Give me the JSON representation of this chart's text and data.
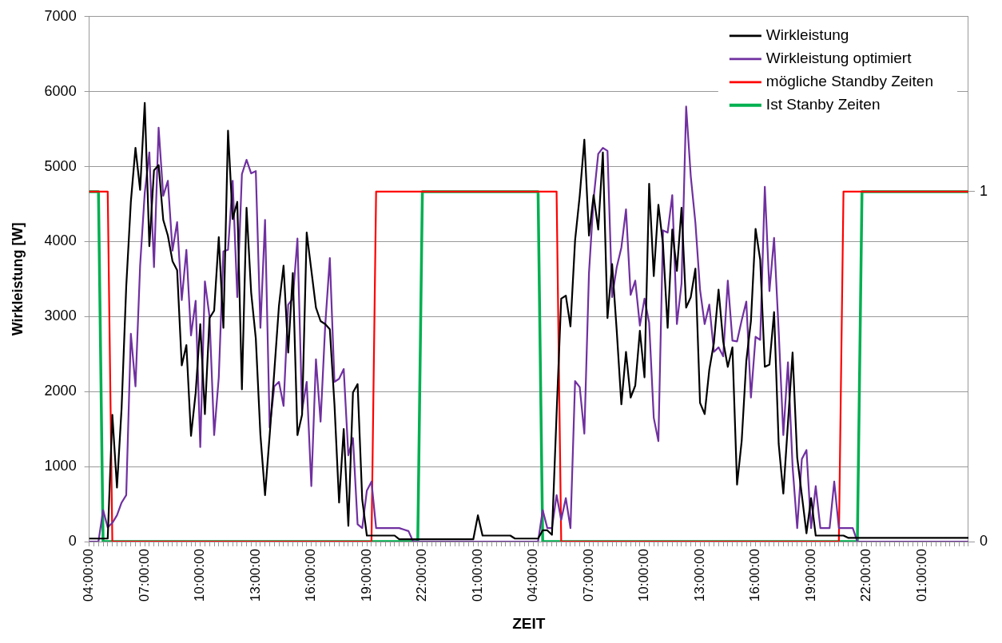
{
  "chart_data": {
    "type": "line",
    "xlabel": "ZEIT",
    "ylabel": "Wirkleistung [W]",
    "categories": [
      "04:00:00",
      null,
      null,
      null,
      null,
      null,
      null,
      null,
      null,
      null,
      null,
      null,
      "07:00:00",
      null,
      null,
      null,
      null,
      null,
      null,
      null,
      null,
      null,
      null,
      null,
      "10:00:00",
      null,
      null,
      null,
      null,
      null,
      null,
      null,
      null,
      null,
      null,
      null,
      "13:00:00",
      null,
      null,
      null,
      null,
      null,
      null,
      null,
      null,
      null,
      null,
      null,
      "16:00:00",
      null,
      null,
      null,
      null,
      null,
      null,
      null,
      null,
      null,
      null,
      null,
      "19:00:00",
      null,
      null,
      null,
      null,
      null,
      null,
      null,
      null,
      null,
      null,
      null,
      "22:00:00",
      null,
      null,
      null,
      null,
      null,
      null,
      null,
      null,
      null,
      null,
      null,
      "01:00:00",
      null,
      null,
      null,
      null,
      null,
      null,
      null,
      null,
      null,
      null,
      null,
      "04:00:00",
      null,
      null,
      null,
      null,
      null,
      null,
      null,
      null,
      null,
      null,
      null,
      "07:00:00",
      null,
      null,
      null,
      null,
      null,
      null,
      null,
      null,
      null,
      null,
      null,
      "10:00:00",
      null,
      null,
      null,
      null,
      null,
      null,
      null,
      null,
      null,
      null,
      null,
      "13:00:00",
      null,
      null,
      null,
      null,
      null,
      null,
      null,
      null,
      null,
      null,
      null,
      "16:00:00",
      null,
      null,
      null,
      null,
      null,
      null,
      null,
      null,
      null,
      null,
      null,
      "19:00:00",
      null,
      null,
      null,
      null,
      null,
      null,
      null,
      null,
      null,
      null,
      null,
      "22:00:00",
      null,
      null,
      null,
      null,
      null,
      null,
      null,
      null,
      null,
      null,
      null,
      "01:00:00",
      null,
      null,
      null,
      null,
      null,
      null,
      null,
      null,
      null,
      null
    ],
    "series": [
      {
        "name": "Wirkleistung",
        "color": "#000000",
        "values": [
          40,
          40,
          40,
          40,
          40,
          1690,
          720,
          1780,
          3400,
          4530,
          5250,
          4690,
          5850,
          3940,
          4950,
          5020,
          4290,
          4080,
          3740,
          3620,
          2350,
          2620,
          1410,
          1980,
          2900,
          1700,
          2980,
          3080,
          4060,
          2850,
          5480,
          4300,
          4530,
          2030,
          4450,
          3320,
          2710,
          1420,
          620,
          1420,
          2270,
          3140,
          3680,
          2520,
          3580,
          1420,
          1690,
          4120,
          3620,
          3120,
          2940,
          2900,
          2830,
          1830,
          520,
          1500,
          210,
          1990,
          2100,
          560,
          80,
          80,
          80,
          80,
          80,
          80,
          80,
          30,
          30,
          30,
          30,
          30,
          30,
          30,
          30,
          30,
          30,
          30,
          30,
          30,
          30,
          30,
          30,
          30,
          350,
          80,
          80,
          80,
          80,
          80,
          80,
          80,
          40,
          40,
          40,
          40,
          40,
          40,
          150,
          150,
          90,
          1700,
          3240,
          3280,
          2870,
          4020,
          4610,
          5360,
          4080,
          4620,
          4160,
          5190,
          2980,
          3700,
          2810,
          1830,
          2530,
          1920,
          2080,
          2810,
          2190,
          4770,
          3540,
          4490,
          3960,
          2850,
          4160,
          3610,
          4450,
          3120,
          3260,
          3640,
          1850,
          1700,
          2290,
          2650,
          3360,
          2670,
          2330,
          2590,
          760,
          1340,
          2410,
          2940,
          4170,
          3760,
          2330,
          2360,
          3060,
          1300,
          640,
          1580,
          2520,
          1120,
          620,
          110,
          580,
          80,
          80,
          80,
          80,
          80,
          80,
          80,
          50,
          50,
          50,
          50,
          50,
          50,
          50,
          50,
          50,
          50,
          50,
          50,
          50,
          50,
          50,
          50,
          50,
          50,
          50,
          50,
          50,
          50,
          50,
          50,
          50,
          50,
          50
        ]
      },
      {
        "name": "Wirkleistung optimiert",
        "color": "#7030a0",
        "values": [
          0,
          0,
          0,
          420,
          190,
          250,
          350,
          520,
          620,
          2770,
          2070,
          3680,
          4650,
          5190,
          3660,
          5520,
          4610,
          4810,
          3880,
          4260,
          3220,
          3890,
          2750,
          3210,
          1260,
          3470,
          3000,
          1420,
          2190,
          3870,
          3890,
          4810,
          3260,
          4900,
          5090,
          4910,
          4940,
          2850,
          4290,
          1520,
          2070,
          2130,
          1810,
          3160,
          3240,
          4040,
          1750,
          2130,
          740,
          2430,
          1600,
          2880,
          3780,
          2130,
          2170,
          2300,
          1150,
          1380,
          230,
          180,
          680,
          800,
          180,
          180,
          180,
          180,
          180,
          180,
          160,
          140,
          0,
          0,
          0,
          0,
          0,
          0,
          0,
          0,
          0,
          0,
          0,
          0,
          0,
          0,
          0,
          0,
          0,
          0,
          0,
          0,
          0,
          0,
          0,
          0,
          0,
          0,
          0,
          0,
          420,
          180,
          180,
          620,
          290,
          580,
          180,
          2140,
          2060,
          1440,
          3580,
          4570,
          5170,
          5250,
          5210,
          3260,
          3660,
          3920,
          4430,
          3290,
          3480,
          2880,
          3240,
          2920,
          1650,
          1340,
          4150,
          4120,
          4620,
          2900,
          3440,
          5800,
          4870,
          4250,
          3360,
          2900,
          3160,
          2530,
          2590,
          2470,
          3480,
          2680,
          2670,
          2950,
          3200,
          1920,
          2730,
          2690,
          4730,
          3340,
          4050,
          2800,
          1420,
          2390,
          1000,
          180,
          1100,
          1220,
          180,
          740,
          180,
          180,
          180,
          800,
          180,
          180,
          180,
          180,
          0,
          0,
          0,
          0,
          0,
          0,
          0,
          0,
          0,
          0,
          0,
          0,
          0,
          0,
          0,
          0,
          0,
          0,
          0,
          0,
          0,
          0,
          0,
          0,
          0
        ]
      },
      {
        "name": "mögliche Standby Zeiten",
        "color": "#ff0000",
        "axis": "y2",
        "values": [
          1,
          1,
          1,
          1,
          1,
          0,
          0,
          0,
          0,
          0,
          0,
          0,
          0,
          0,
          0,
          0,
          0,
          0,
          0,
          0,
          0,
          0,
          0,
          0,
          0,
          0,
          0,
          0,
          0,
          0,
          0,
          0,
          0,
          0,
          0,
          0,
          0,
          0,
          0,
          0,
          0,
          0,
          0,
          0,
          0,
          0,
          0,
          0,
          0,
          0,
          0,
          0,
          0,
          0,
          0,
          0,
          0,
          0,
          0,
          0,
          0,
          0,
          1,
          1,
          1,
          1,
          1,
          1,
          1,
          1,
          1,
          1,
          1,
          1,
          1,
          1,
          1,
          1,
          1,
          1,
          1,
          1,
          1,
          1,
          1,
          1,
          1,
          1,
          1,
          1,
          1,
          1,
          1,
          1,
          1,
          1,
          1,
          1,
          1,
          1,
          1,
          1,
          0,
          0,
          0,
          0,
          0,
          0,
          0,
          0,
          0,
          0,
          0,
          0,
          0,
          0,
          0,
          0,
          0,
          0,
          0,
          0,
          0,
          0,
          0,
          0,
          0,
          0,
          0,
          0,
          0,
          0,
          0,
          0,
          0,
          0,
          0,
          0,
          0,
          0,
          0,
          0,
          0,
          0,
          0,
          0,
          0,
          0,
          0,
          0,
          0,
          0,
          0,
          0,
          0,
          0,
          0,
          0,
          0,
          0,
          0,
          0,
          0,
          1,
          1,
          1,
          1,
          1,
          1,
          1,
          1,
          1,
          1,
          1,
          1,
          1,
          1,
          1,
          1,
          1,
          1,
          1,
          1,
          1,
          1,
          1,
          1,
          1,
          1,
          1,
          1
        ]
      },
      {
        "name": "Ist Stanby Zeiten",
        "color": "#00b050",
        "axis": "y2",
        "values": [
          1,
          1,
          1,
          0,
          0,
          0,
          0,
          0,
          0,
          0,
          0,
          0,
          0,
          0,
          0,
          0,
          0,
          0,
          0,
          0,
          0,
          0,
          0,
          0,
          0,
          0,
          0,
          0,
          0,
          0,
          0,
          0,
          0,
          0,
          0,
          0,
          0,
          0,
          0,
          0,
          0,
          0,
          0,
          0,
          0,
          0,
          0,
          0,
          0,
          0,
          0,
          0,
          0,
          0,
          0,
          0,
          0,
          0,
          0,
          0,
          0,
          0,
          0,
          0,
          0,
          0,
          0,
          0,
          0,
          0,
          0,
          0,
          1,
          1,
          1,
          1,
          1,
          1,
          1,
          1,
          1,
          1,
          1,
          1,
          1,
          1,
          1,
          1,
          1,
          1,
          1,
          1,
          1,
          1,
          1,
          1,
          1,
          1,
          0,
          0,
          0,
          0,
          0,
          0,
          0,
          0,
          0,
          0,
          0,
          0,
          0,
          0,
          0,
          0,
          0,
          0,
          0,
          0,
          0,
          0,
          0,
          0,
          0,
          0,
          0,
          0,
          0,
          0,
          0,
          0,
          0,
          0,
          0,
          0,
          0,
          0,
          0,
          0,
          0,
          0,
          0,
          0,
          0,
          0,
          0,
          0,
          0,
          0,
          0,
          0,
          0,
          0,
          0,
          0,
          0,
          0,
          0,
          0,
          0,
          0,
          0,
          0,
          0,
          0,
          0,
          0,
          0,
          1,
          1,
          1,
          1,
          1,
          1,
          1,
          1,
          1,
          1,
          1,
          1,
          1,
          1,
          1,
          1,
          1,
          1,
          1,
          1,
          1,
          1,
          1,
          1
        ]
      }
    ],
    "ylim": [
      0,
      7000
    ],
    "yticks": [
      0,
      1000,
      2000,
      3000,
      4000,
      5000,
      6000,
      7000
    ],
    "y2lim": [
      0,
      1.5
    ],
    "y2ticks": [
      0,
      1
    ],
    "grid": "y",
    "legend": "top right",
    "line_style": "solid"
  }
}
